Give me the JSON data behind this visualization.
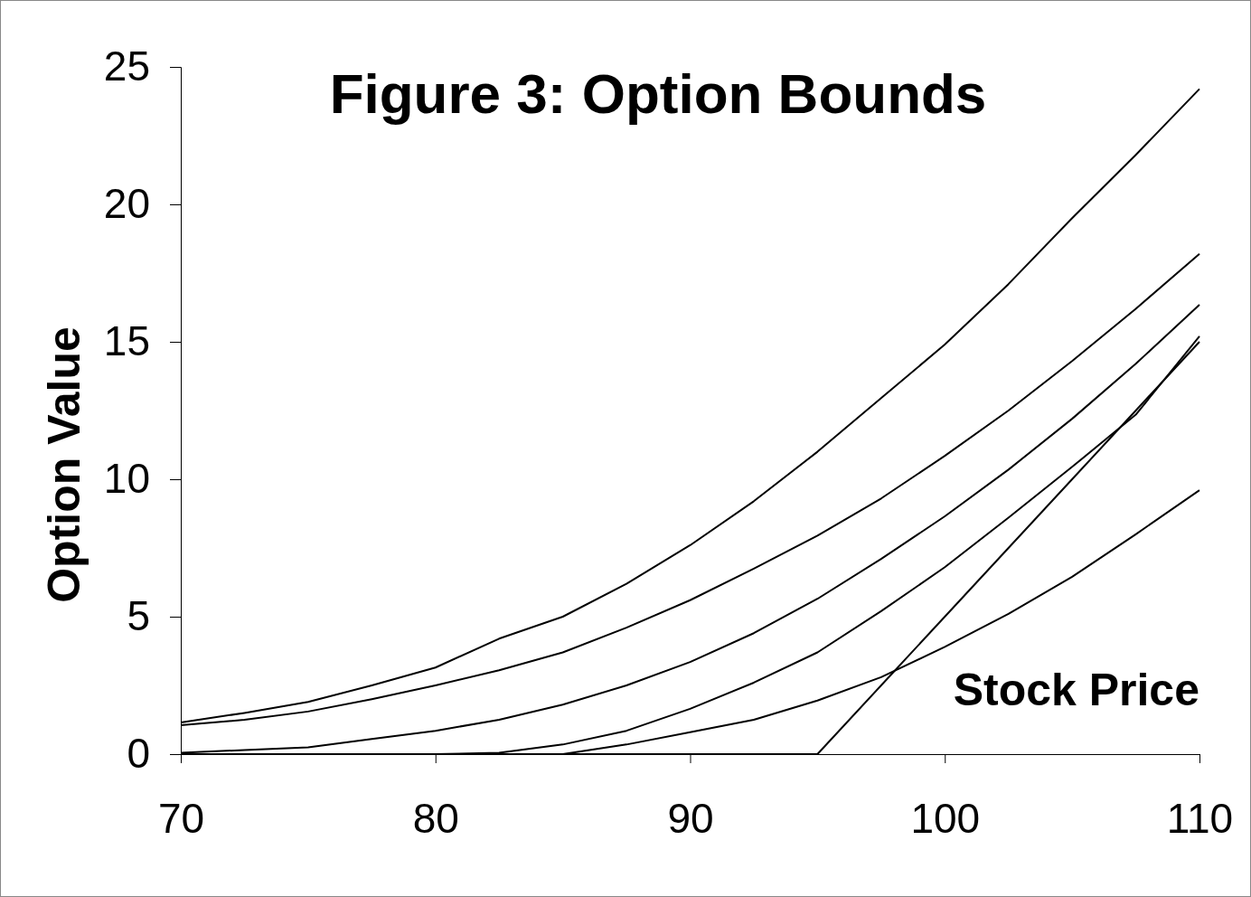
{
  "chart_data": {
    "type": "line",
    "title": "Figure 3: Option Bounds",
    "xlabel": "Stock Price",
    "ylabel": "Option Value",
    "x": [
      70,
      72.5,
      75,
      77.5,
      80,
      82.5,
      85,
      87.5,
      90,
      92.5,
      95,
      97.5,
      100,
      102.5,
      105,
      107.5,
      110
    ],
    "xlim": [
      70,
      110
    ],
    "xticks": [
      70,
      80,
      90,
      100,
      110
    ],
    "ylim": [
      0,
      25
    ],
    "yticks": [
      0,
      5,
      10,
      15,
      20,
      25
    ],
    "grid": false,
    "marker": "none",
    "line_style": "solid",
    "series": [
      {
        "color": "#000000",
        "values": [
          1.15,
          1.5,
          1.9,
          2.5,
          3.15,
          4.2,
          5.0,
          6.2,
          7.6,
          9.2,
          11.0,
          12.95,
          14.9,
          17.1,
          19.5,
          21.8,
          24.2
        ]
      },
      {
        "color": "#000000",
        "values": [
          1.05,
          1.25,
          1.55,
          2.0,
          2.5,
          3.05,
          3.7,
          4.6,
          5.6,
          6.75,
          7.95,
          9.3,
          10.85,
          12.5,
          14.3,
          16.2,
          18.2
        ]
      },
      {
        "color": "#000000",
        "values": [
          0.05,
          0.15,
          0.25,
          0.55,
          0.85,
          1.25,
          1.8,
          2.5,
          3.35,
          4.4,
          5.65,
          7.1,
          8.65,
          10.35,
          12.2,
          14.2,
          16.35
        ]
      },
      {
        "color": "#000000",
        "values": [
          0,
          0,
          0,
          0,
          0,
          0.05,
          0.35,
          0.85,
          1.65,
          2.6,
          3.7,
          5.2,
          6.8,
          8.6,
          10.45,
          12.35,
          15.2
        ]
      },
      {
        "color": "#000000",
        "values": [
          0,
          0,
          0,
          0,
          0,
          0,
          0,
          0.35,
          0.8,
          1.25,
          1.95,
          2.8,
          3.9,
          5.1,
          6.45,
          8.0,
          9.6
        ]
      },
      {
        "color": "#000000",
        "values": [
          0,
          0,
          0,
          0,
          0,
          0,
          0,
          0,
          0,
          0,
          0,
          2.5,
          5,
          7.5,
          10,
          12.5,
          15
        ]
      }
    ]
  }
}
